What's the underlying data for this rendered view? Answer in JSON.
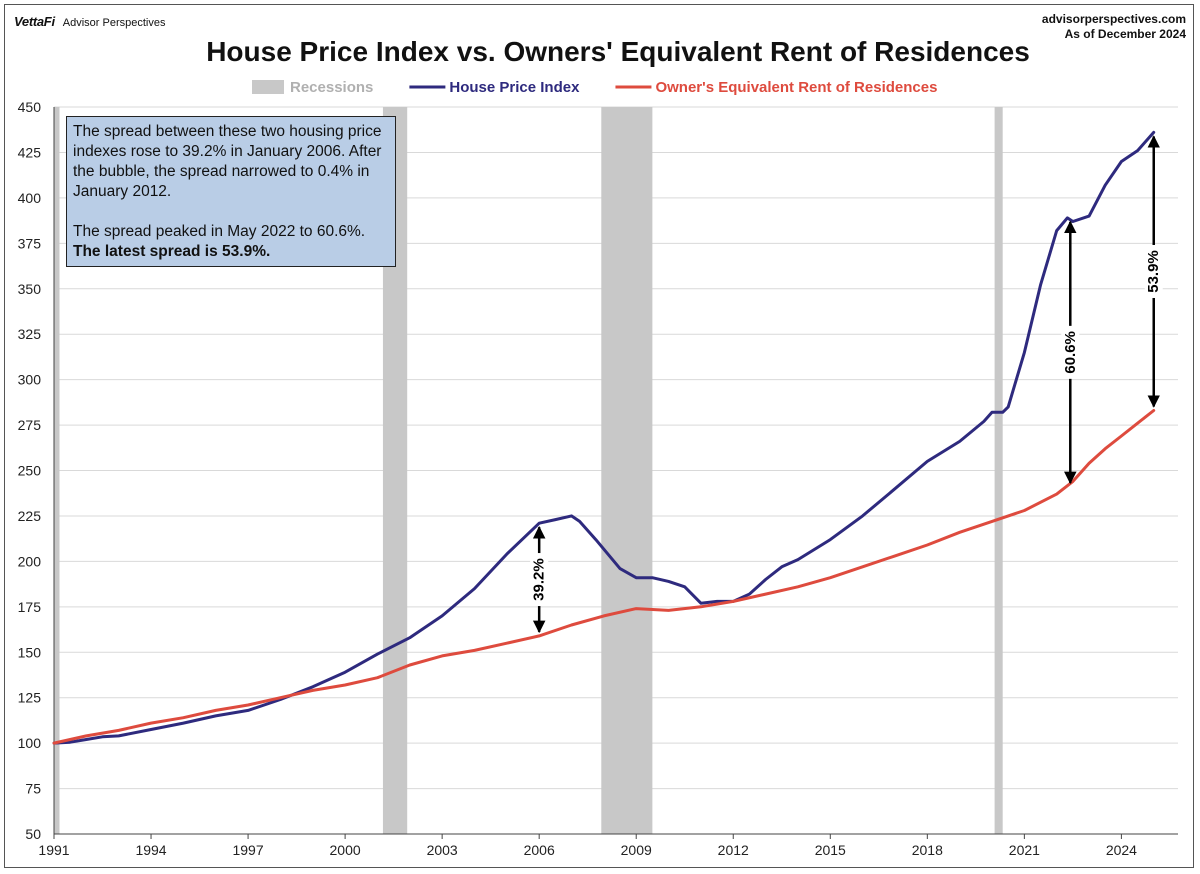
{
  "header": {
    "brand_logo": "VettaFi",
    "brand_name": "Advisor Perspectives",
    "source_url": "advisorperspectives.com",
    "as_of": "As of December 2024"
  },
  "annotation_box": {
    "para1": "The spread between these two housing price indexes rose to 39.2% in January 2006. After the bubble, the spread narrowed to 0.4% in January 2012.",
    "para2_prefix": "The spread peaked in May 2022 to 60.6%. ",
    "para2_bold": "The latest spread is 53.9%."
  },
  "colors": {
    "hpi": "#2e2a7e",
    "oer": "#de4b3e",
    "recession": "#c8c8c8",
    "grid": "#d9d9d9",
    "annotation_bg": "#b9cde6"
  },
  "chart_data": {
    "type": "line",
    "title": "House Price Index vs. Owners' Equivalent Rent of Residences",
    "xlabel": "",
    "ylabel": "",
    "xlim": [
      1991,
      2025.75
    ],
    "ylim": [
      50,
      450
    ],
    "x_ticks": [
      1991,
      1994,
      1997,
      2000,
      2003,
      2006,
      2009,
      2012,
      2015,
      2018,
      2021,
      2024
    ],
    "y_ticks": [
      50,
      75,
      100,
      125,
      150,
      175,
      200,
      225,
      250,
      275,
      300,
      325,
      350,
      375,
      400,
      425,
      450
    ],
    "grid": true,
    "legend": [
      {
        "label": "Recessions",
        "kind": "band"
      },
      {
        "label": "House Price Index",
        "kind": "line"
      },
      {
        "label": "Owner's Equivalent Rent of Residences",
        "kind": "line"
      }
    ],
    "legend_position": "top-center",
    "recessions": [
      {
        "start": 1991.0,
        "end": 1991.17
      },
      {
        "start": 2001.17,
        "end": 2001.92
      },
      {
        "start": 2007.92,
        "end": 2009.5
      },
      {
        "start": 2020.08,
        "end": 2020.33
      }
    ],
    "series": [
      {
        "name": "House Price Index",
        "key": "hpi",
        "x": [
          1991.0,
          1991.5,
          1992.0,
          1992.5,
          1993.0,
          1994.0,
          1995.0,
          1996.0,
          1997.0,
          1998.0,
          1999.0,
          2000.0,
          2001.0,
          2002.0,
          2003.0,
          2004.0,
          2005.0,
          2006.0,
          2006.5,
          2007.0,
          2007.25,
          2007.75,
          2008.5,
          2009.0,
          2009.5,
          2010.0,
          2010.5,
          2011.0,
          2011.5,
          2012.0,
          2012.5,
          2013.0,
          2013.5,
          2014.0,
          2015.0,
          2016.0,
          2017.0,
          2018.0,
          2019.0,
          2019.75,
          2020.0,
          2020.33,
          2020.5,
          2021.0,
          2021.5,
          2022.0,
          2022.33,
          2022.5,
          2023.0,
          2023.5,
          2024.0,
          2024.5,
          2025.0
        ],
        "values": [
          100,
          100.5,
          102,
          103.5,
          104,
          107.5,
          111,
          115,
          118,
          124,
          131,
          139,
          149,
          158,
          170,
          185,
          204,
          221,
          223,
          225,
          222,
          212,
          196,
          191,
          191,
          189,
          186,
          177,
          178,
          178,
          182,
          190,
          197,
          201,
          212,
          225,
          240,
          255,
          266,
          277,
          282,
          282,
          285,
          315,
          352,
          382,
          389,
          387,
          390,
          407,
          420,
          426,
          436
        ]
      },
      {
        "name": "Owner's Equivalent Rent of Residences",
        "key": "oer",
        "x": [
          1991.0,
          1992.0,
          1993.0,
          1994.0,
          1995.0,
          1996.0,
          1997.0,
          1998.0,
          1999.0,
          2000.0,
          2001.0,
          2002.0,
          2003.0,
          2004.0,
          2005.0,
          2006.0,
          2007.0,
          2008.0,
          2009.0,
          2010.0,
          2011.0,
          2012.0,
          2013.0,
          2014.0,
          2015.0,
          2016.0,
          2017.0,
          2018.0,
          2019.0,
          2020.0,
          2021.0,
          2022.0,
          2022.5,
          2023.0,
          2023.5,
          2024.0,
          2024.5,
          2025.0
        ],
        "values": [
          100,
          104,
          107,
          111,
          114,
          118,
          121,
          125,
          129,
          132,
          136,
          143,
          148,
          151,
          155,
          159,
          165,
          170,
          174,
          173,
          175,
          178,
          182,
          186,
          191,
          197,
          203,
          209,
          216,
          222,
          228,
          237,
          244,
          254,
          262,
          269,
          276,
          283
        ]
      }
    ],
    "spread_annotations": [
      {
        "label": "39.2%",
        "x": 2006.0,
        "y_low": 159,
        "y_high": 221
      },
      {
        "label": "60.6%",
        "x": 2022.42,
        "y_low": 241,
        "y_high": 389
      },
      {
        "label": "53.9%",
        "x": 2025.0,
        "y_low": 283,
        "y_high": 436
      }
    ]
  }
}
